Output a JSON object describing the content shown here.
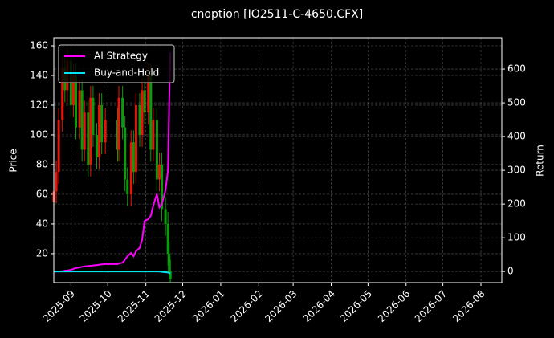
{
  "chart_data": {
    "type": "candlestick",
    "title": "cnoption [IO2511-C-4650.CFX]",
    "ylabel": "Price",
    "y2label": "Return",
    "x": [
      "2025-08-18",
      "2025-08-20",
      "2025-08-22",
      "2025-08-25",
      "2025-08-27",
      "2025-08-29",
      "2025-09-01",
      "2025-09-03",
      "2025-09-05",
      "2025-09-08",
      "2025-09-10",
      "2025-09-12",
      "2025-09-15",
      "2025-09-17",
      "2025-09-19",
      "2025-09-22",
      "2025-09-24",
      "2025-09-26",
      "2025-09-29",
      "2025-10-09",
      "2025-10-10",
      "2025-10-13",
      "2025-10-15",
      "2025-10-17",
      "2025-10-20",
      "2025-10-22",
      "2025-10-24",
      "2025-10-27",
      "2025-10-29",
      "2025-10-31",
      "2025-11-03",
      "2025-11-05",
      "2025-11-07",
      "2025-11-10",
      "2025-11-12",
      "2025-11-14",
      "2025-11-17",
      "2025-11-19",
      "2025-11-20",
      "2025-11-21"
    ],
    "open": [
      55,
      62,
      75,
      110,
      145,
      130,
      150,
      120,
      140,
      105,
      130,
      90,
      115,
      80,
      125,
      100,
      85,
      120,
      95,
      110,
      90,
      125,
      105,
      70,
      60,
      95,
      75,
      120,
      100,
      130,
      115,
      140,
      90,
      110,
      70,
      80,
      50,
      40,
      20,
      8
    ],
    "high": [
      70,
      83,
      118,
      153,
      153,
      158,
      158,
      148,
      148,
      138,
      138,
      123,
      123,
      133,
      133,
      108,
      128,
      128,
      118,
      118,
      133,
      133,
      113,
      78,
      103,
      103,
      128,
      128,
      138,
      138,
      148,
      148,
      118,
      118,
      88,
      88,
      58,
      48,
      28,
      16
    ],
    "low": [
      47,
      54,
      67,
      102,
      122,
      122,
      112,
      112,
      97,
      97,
      82,
      82,
      72,
      72,
      92,
      77,
      77,
      87,
      87,
      82,
      82,
      97,
      62,
      52,
      52,
      67,
      67,
      92,
      92,
      107,
      107,
      82,
      82,
      62,
      62,
      42,
      32,
      12,
      1,
      1
    ],
    "close": [
      62,
      75,
      110,
      145,
      130,
      150,
      120,
      140,
      105,
      130,
      90,
      115,
      80,
      125,
      100,
      85,
      120,
      95,
      110,
      90,
      125,
      105,
      70,
      60,
      95,
      75,
      120,
      100,
      130,
      115,
      140,
      90,
      110,
      70,
      80,
      50,
      40,
      20,
      8,
      3
    ],
    "up_color": "#e8150a",
    "down_color": "#0a9c0a",
    "series": [
      {
        "name": "AI Strategy",
        "color": "#ff00ff",
        "axis": "y2",
        "values": [
          0,
          0,
          0,
          1,
          2,
          3,
          5,
          8,
          10,
          12,
          14,
          15,
          16,
          17,
          18,
          19,
          20,
          21,
          22,
          22,
          24,
          26,
          35,
          45,
          55,
          45,
          60,
          70,
          95,
          150,
          155,
          165,
          195,
          230,
          190,
          200,
          240,
          300,
          500,
          650
        ]
      },
      {
        "name": "Buy-and-Hold",
        "color": "#00e5ee",
        "axis": "y2",
        "values": [
          0,
          0,
          0,
          0,
          0,
          0,
          0,
          0,
          0,
          0,
          0,
          0,
          0,
          0,
          0,
          0,
          0,
          0,
          0,
          0,
          0,
          0,
          0,
          0,
          0,
          0,
          0,
          0,
          0,
          0,
          0,
          0,
          0,
          0,
          0,
          -1,
          -2,
          -3,
          -4,
          -6
        ]
      }
    ],
    "xlim": [
      "2025-08-18",
      "2026-08-18"
    ],
    "xticks": [
      {
        "value": "2025-09-01",
        "label": "2025-09"
      },
      {
        "value": "2025-10-01",
        "label": "2025-10"
      },
      {
        "value": "2025-11-01",
        "label": "2025-11"
      },
      {
        "value": "2025-12-01",
        "label": "2025-12"
      },
      {
        "value": "2026-01-01",
        "label": "2026-01"
      },
      {
        "value": "2026-02-01",
        "label": "2026-02"
      },
      {
        "value": "2026-03-01",
        "label": "2026-03"
      },
      {
        "value": "2026-04-01",
        "label": "2026-04"
      },
      {
        "value": "2026-05-01",
        "label": "2026-05"
      },
      {
        "value": "2026-06-01",
        "label": "2026-06"
      },
      {
        "value": "2026-07-01",
        "label": "2026-07"
      },
      {
        "value": "2026-08-01",
        "label": "2026-08"
      }
    ],
    "ylim": [
      0.5,
      165.4
    ],
    "yticks": [
      20,
      40,
      60,
      80,
      100,
      120,
      140,
      160
    ],
    "y2lim": [
      -33,
      693
    ],
    "y2ticks": [
      0,
      100,
      200,
      300,
      400,
      500,
      600
    ],
    "grid": true,
    "legend": "upper left"
  }
}
